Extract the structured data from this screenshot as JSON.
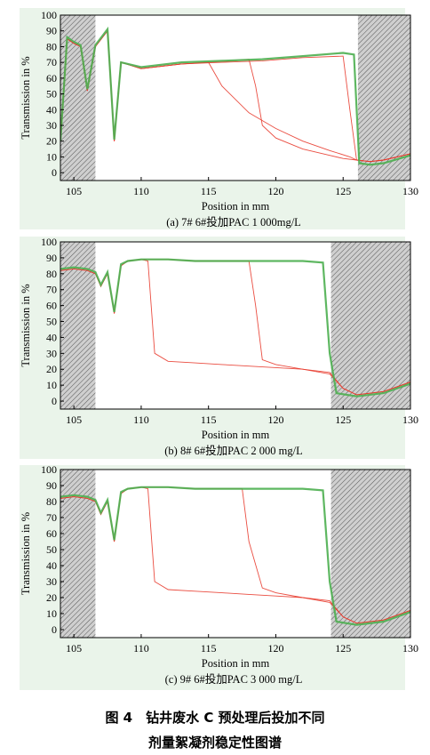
{
  "figure": {
    "caption_line1": "图 4　钻井废水 C 预处理后投加不同",
    "caption_line2": "剂量絮凝剂稳定性图谱"
  },
  "chart_data": [
    {
      "type": "line",
      "subtitle": "(a) 7# 6#投加PAC 1 000mg/L",
      "xlabel": "Position in mm",
      "ylabel": "Transmission in %",
      "xlim": [
        104,
        130
      ],
      "ylim": [
        -5,
        100
      ],
      "xticks": [
        105,
        110,
        115,
        120,
        125,
        130
      ],
      "yticks": [
        0,
        10,
        20,
        30,
        40,
        50,
        60,
        70,
        80,
        90,
        100
      ],
      "hatched_regions": [
        [
          104,
          106.6
        ],
        [
          126.1,
          130
        ]
      ],
      "series": [
        {
          "color": "#e83a2c",
          "x": [
            104,
            104.5,
            105,
            105.5,
            106,
            106.6,
            107.5,
            108,
            108.5,
            110,
            113,
            116,
            119,
            122,
            125,
            125.5,
            126,
            127,
            128,
            130
          ],
          "y": [
            20,
            85,
            82,
            80,
            52,
            80,
            90,
            20,
            70,
            66,
            69,
            70,
            71,
            73,
            74,
            40,
            8,
            7,
            8,
            12
          ]
        },
        {
          "color": "#e83a2c",
          "x": [
            104,
            104.5,
            105,
            105.5,
            106,
            106.6,
            107.5,
            108,
            108.5,
            110,
            113,
            115,
            116,
            118,
            120,
            122,
            124,
            125.5,
            126,
            127,
            128,
            130
          ],
          "y": [
            20,
            85,
            82,
            80,
            52,
            80,
            90,
            20,
            70,
            66,
            69,
            70,
            55,
            38,
            28,
            20,
            14,
            10,
            8,
            7,
            8,
            12
          ]
        },
        {
          "color": "#e83a2c",
          "x": [
            104,
            104.5,
            105,
            105.5,
            106,
            106.6,
            107.5,
            108,
            108.5,
            110,
            113,
            115,
            117,
            118,
            118.5,
            119,
            120,
            122,
            124,
            125,
            126,
            127,
            128,
            130
          ],
          "y": [
            20,
            85,
            82,
            80,
            52,
            80,
            90,
            20,
            70,
            66,
            69,
            70,
            71,
            72,
            55,
            30,
            22,
            15,
            11,
            9,
            8,
            7,
            8,
            12
          ]
        },
        {
          "color": "#4caf50",
          "x": [
            104,
            104.5,
            105,
            105.5,
            106,
            106.6,
            107.5,
            108,
            108.5,
            110,
            113,
            116,
            119,
            122,
            125,
            125.8,
            126.2,
            127,
            128,
            130
          ],
          "y": [
            20,
            86,
            83,
            81,
            53,
            81,
            91,
            21,
            70,
            67,
            70,
            71,
            72,
            74,
            76,
            75,
            6,
            5,
            6,
            11
          ]
        }
      ]
    },
    {
      "type": "line",
      "subtitle": "(b) 8# 6#投加PAC 2 000 mg/L",
      "xlabel": "Position in mm",
      "ylabel": "Transmission in %",
      "xlim": [
        104,
        130
      ],
      "ylim": [
        -5,
        100
      ],
      "xticks": [
        105,
        110,
        115,
        120,
        125,
        130
      ],
      "yticks": [
        0,
        10,
        20,
        30,
        40,
        50,
        60,
        70,
        80,
        90,
        100
      ],
      "hatched_regions": [
        [
          104,
          106.6
        ],
        [
          124.1,
          130
        ]
      ],
      "series": [
        {
          "color": "#e83a2c",
          "x": [
            104,
            105,
            106,
            106.6,
            107,
            107.5,
            108,
            108.5,
            109,
            110,
            110.5,
            111,
            112,
            114,
            116,
            118,
            120,
            122,
            124,
            125,
            126,
            128,
            130
          ],
          "y": [
            82,
            83,
            82,
            80,
            72,
            80,
            55,
            85,
            88,
            89,
            88,
            30,
            25,
            24,
            23,
            22,
            21,
            20,
            18,
            8,
            4,
            6,
            12
          ]
        },
        {
          "color": "#e83a2c",
          "x": [
            104,
            105,
            106,
            106.6,
            107,
            107.5,
            108,
            108.5,
            109,
            110,
            112,
            114,
            116,
            118,
            118.5,
            119,
            120,
            122,
            124,
            125,
            126,
            128,
            130
          ],
          "y": [
            82,
            83,
            82,
            80,
            72,
            80,
            55,
            85,
            88,
            89,
            89,
            88,
            88,
            88,
            60,
            26,
            23,
            20,
            17,
            8,
            4,
            6,
            12
          ]
        },
        {
          "color": "#4caf50",
          "x": [
            104,
            105,
            106,
            106.6,
            107,
            107.5,
            108,
            108.5,
            109,
            110,
            112,
            114,
            116,
            118,
            120,
            122,
            123.5,
            124,
            124.5,
            126,
            128,
            130
          ],
          "y": [
            83,
            84,
            83,
            81,
            73,
            81,
            56,
            86,
            88,
            89,
            89,
            88,
            88,
            88,
            88,
            88,
            87,
            30,
            5,
            3,
            5,
            11
          ]
        }
      ]
    },
    {
      "type": "line",
      "subtitle": "(c) 9# 6#投加PAC 3 000 mg/L",
      "xlabel": "Position in mm",
      "ylabel": "Transmission in %",
      "xlim": [
        104,
        130
      ],
      "ylim": [
        -5,
        100
      ],
      "xticks": [
        105,
        110,
        115,
        120,
        125,
        130
      ],
      "yticks": [
        0,
        10,
        20,
        30,
        40,
        50,
        60,
        70,
        80,
        90,
        100
      ],
      "hatched_regions": [
        [
          104,
          106.6
        ],
        [
          124.1,
          130
        ]
      ],
      "series": [
        {
          "color": "#e83a2c",
          "x": [
            104,
            105,
            106,
            106.6,
            107,
            107.5,
            108,
            108.5,
            109,
            110,
            110.5,
            111,
            112,
            114,
            116,
            118,
            120,
            122,
            124,
            125,
            126,
            128,
            130
          ],
          "y": [
            82,
            83,
            82,
            80,
            72,
            80,
            55,
            85,
            88,
            89,
            88,
            30,
            25,
            24,
            23,
            22,
            21,
            20,
            18,
            8,
            4,
            6,
            12
          ]
        },
        {
          "color": "#e83a2c",
          "x": [
            104,
            105,
            106,
            106.6,
            107,
            107.5,
            108,
            108.5,
            109,
            110,
            112,
            114,
            116,
            117.5,
            118,
            119,
            120,
            122,
            124,
            125,
            126,
            128,
            130
          ],
          "y": [
            82,
            83,
            82,
            80,
            72,
            80,
            55,
            85,
            88,
            89,
            89,
            88,
            88,
            88,
            55,
            26,
            23,
            20,
            17,
            8,
            4,
            6,
            12
          ]
        },
        {
          "color": "#4caf50",
          "x": [
            104,
            105,
            106,
            106.6,
            107,
            107.5,
            108,
            108.5,
            109,
            110,
            112,
            114,
            116,
            118,
            120,
            122,
            123.5,
            124,
            124.5,
            126,
            128,
            130
          ],
          "y": [
            83,
            84,
            83,
            81,
            73,
            81,
            56,
            86,
            88,
            89,
            89,
            88,
            88,
            88,
            88,
            88,
            87,
            30,
            5,
            3,
            5,
            11
          ]
        }
      ]
    }
  ]
}
